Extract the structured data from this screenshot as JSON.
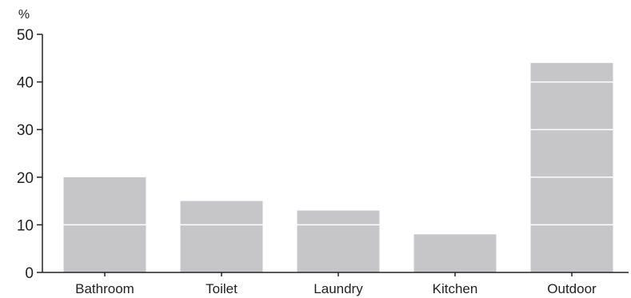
{
  "chart_data": {
    "type": "bar",
    "y_unit": "%",
    "categories": [
      "Bathroom",
      "Toilet",
      "Laundry",
      "Kitchen",
      "Outdoor"
    ],
    "values": [
      20,
      15,
      13,
      8,
      44
    ],
    "ylim": [
      0,
      50
    ],
    "yticks": [
      0,
      10,
      20,
      30,
      40,
      50
    ],
    "ytick_labels": [
      "0",
      "10",
      "20",
      "30",
      "40",
      "50"
    ],
    "grid": "white lines inside bars at each major tick",
    "legend": "none",
    "colors": {
      "bar": "#c6c6c8",
      "axis": "#222222",
      "grid": "#ffffff"
    }
  }
}
